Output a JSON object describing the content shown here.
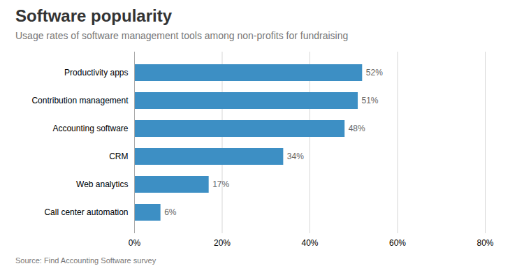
{
  "chart_data": {
    "type": "bar",
    "orientation": "horizontal",
    "title": "Software popularity",
    "subtitle": "Usage rates of software management tools among non-profits for fundraising",
    "source": "Source: Find Accounting Software survey",
    "categories": [
      "Call center automation",
      "Web analytics",
      "CRM",
      "Accounting software",
      "Contribution management",
      "Productivity apps"
    ],
    "values": [
      6,
      17,
      34,
      48,
      51,
      52
    ],
    "value_labels": [
      "6%",
      "17%",
      "34%",
      "48%",
      "51%",
      "52%"
    ],
    "data_labels": true,
    "color": "#3d8fc4",
    "xlim": [
      0,
      80
    ],
    "xticks": [
      {
        "value": 0,
        "label": "0%"
      },
      {
        "value": 20,
        "label": "20%"
      },
      {
        "value": 40,
        "label": "40%"
      },
      {
        "value": 60,
        "label": "60%"
      },
      {
        "value": 80,
        "label": "80%"
      }
    ],
    "grid": true
  }
}
